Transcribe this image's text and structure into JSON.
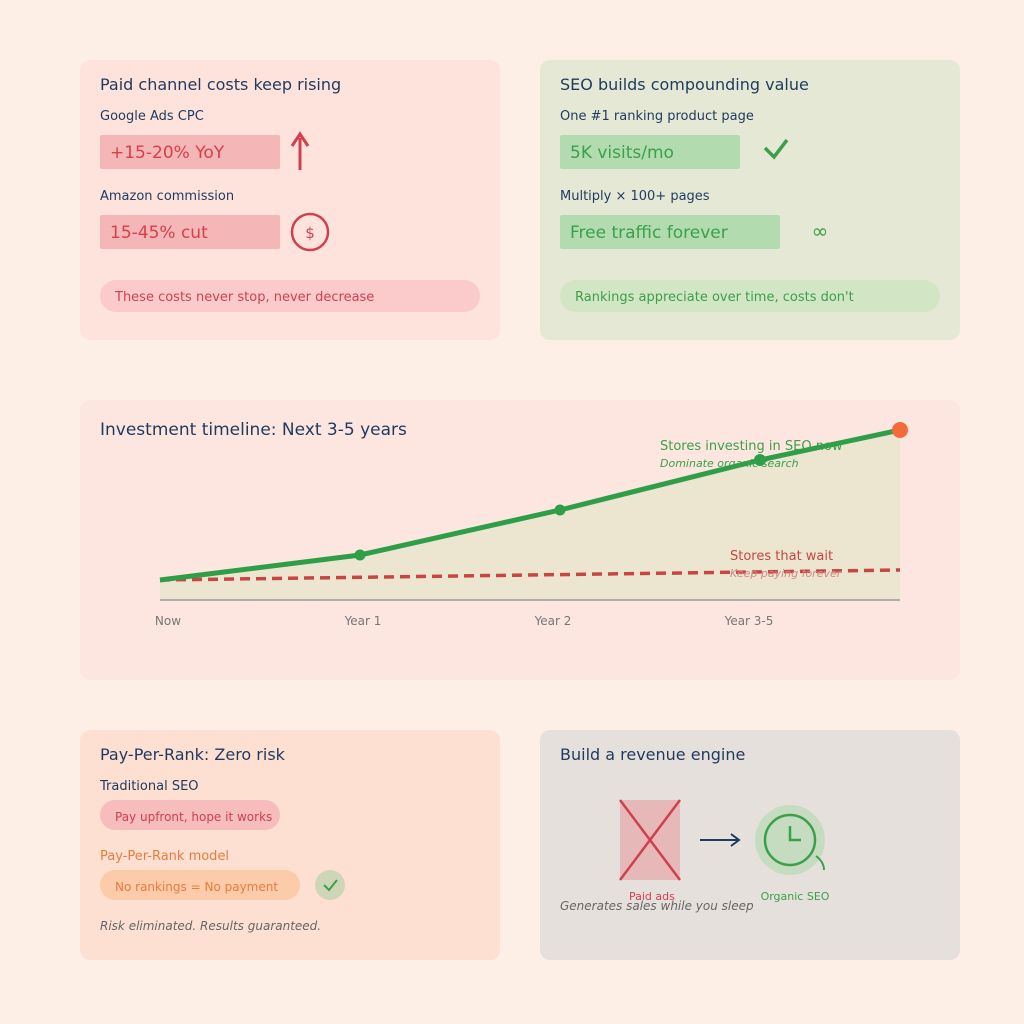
{
  "paid": {
    "title": "Paid channel costs keep rising",
    "items": [
      {
        "label": "Google Ads CPC",
        "value": "+15-20% YoY"
      },
      {
        "label": "Amazon commission",
        "value": "15-45% cut"
      }
    ],
    "icon": "$",
    "note": "These costs never stop, never decrease"
  },
  "seo": {
    "title": "SEO builds compounding value",
    "items": [
      {
        "label": "One #1 ranking product page",
        "value": "5K visits/mo"
      },
      {
        "label": "Multiply × 100+ pages",
        "value": "Free traffic forever"
      }
    ],
    "icon": "∞",
    "note": "Rankings appreciate over time, costs don't"
  },
  "timeline": {
    "title": "Investment timeline: Next 3-5 years",
    "x_labels": [
      "Now",
      "Year 1",
      "Year 2",
      "Year 3-5"
    ],
    "seo_line": {
      "label": "Stores investing in SEO now",
      "sub": "Dominate organic search"
    },
    "wait_line": {
      "label": "Stores that wait",
      "sub": "Keep paying forever"
    }
  },
  "ppr": {
    "title": "Pay-Per-Rank: Zero risk",
    "traditional_label": "Traditional SEO",
    "traditional_pill": "Pay upfront, hope it works",
    "model_label": "Pay-Per-Rank model",
    "model_pill": "No rankings = No payment",
    "footer": "Risk eliminated. Results guaranteed."
  },
  "engine": {
    "title": "Build a revenue engine",
    "left": "Paid ads",
    "right": "Organic SEO",
    "footer": "Generates sales while you sleep"
  }
}
